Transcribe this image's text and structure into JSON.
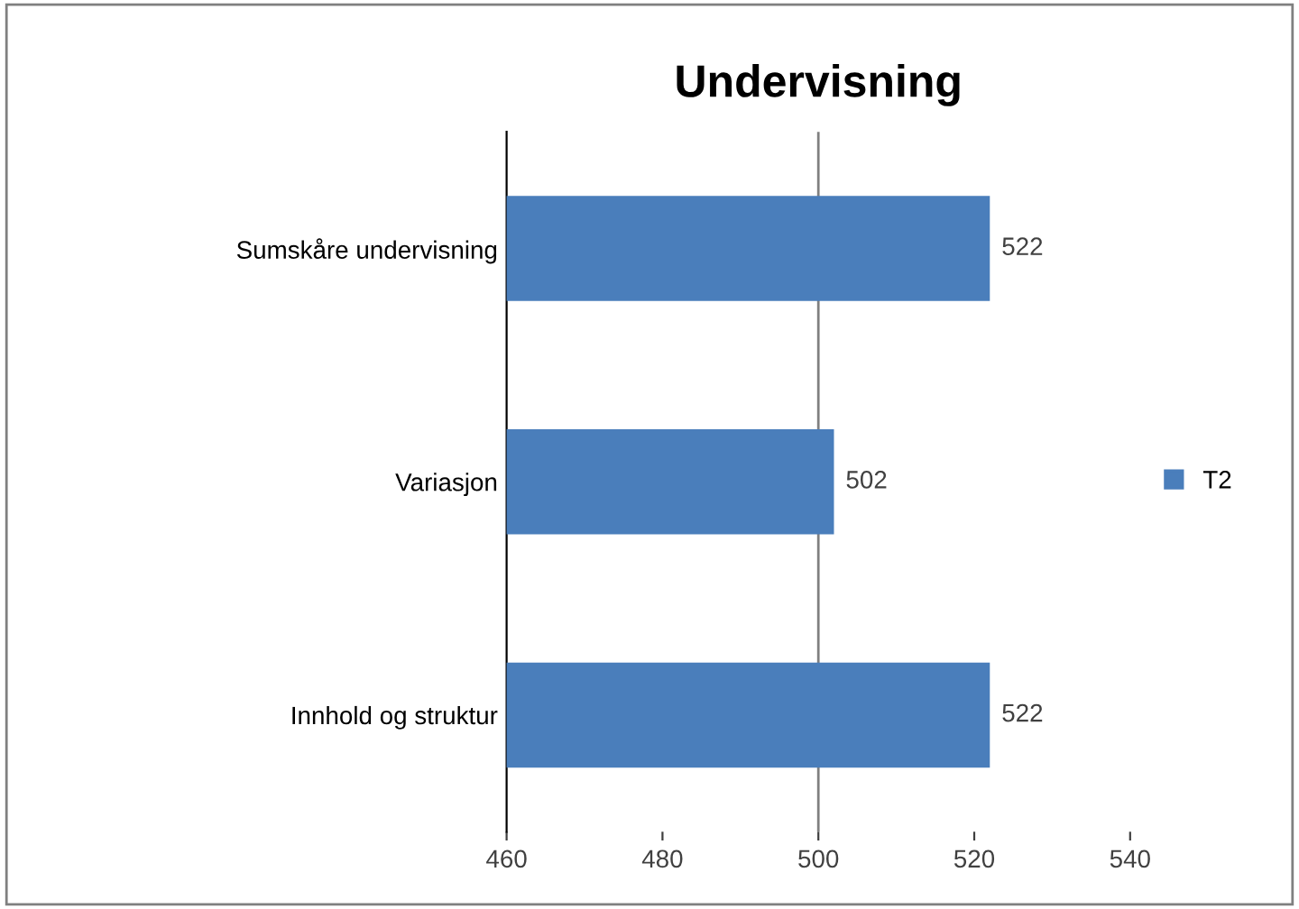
{
  "chart_data": {
    "type": "bar",
    "orientation": "horizontal",
    "title": "Undervisning",
    "categories": [
      "Sumskåre undervisning",
      "Variasjon",
      "Innhold og struktur"
    ],
    "series": [
      {
        "name": "T2",
        "color": "#4a7ebb",
        "values": [
          522,
          502,
          522
        ]
      }
    ],
    "xlim": [
      460,
      540
    ],
    "xticks": [
      460,
      480,
      500,
      520,
      540
    ],
    "ref_lines": [
      {
        "axis": "x",
        "value": 500,
        "color": "#808080"
      }
    ],
    "data_labels": true,
    "legend": "right",
    "grid": false
  }
}
